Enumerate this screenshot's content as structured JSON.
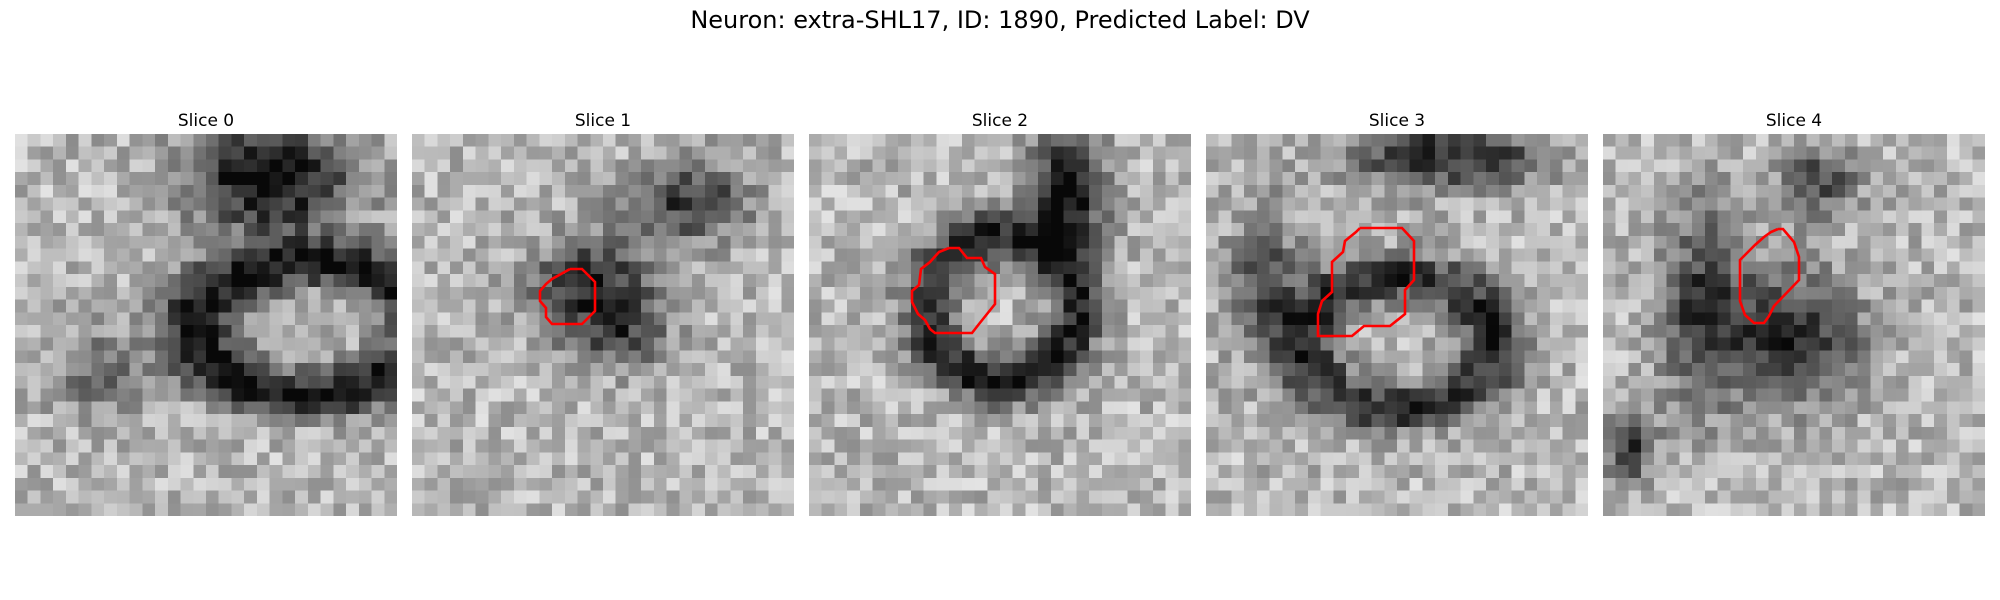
{
  "figure": {
    "title": "Neuron: extra-SHL17, ID: 1890, Predicted Label: DV"
  },
  "panels": [
    {
      "title": "Slice 0",
      "has_outline": false
    },
    {
      "title": "Slice 1",
      "has_outline": true
    },
    {
      "title": "Slice 2",
      "has_outline": true
    },
    {
      "title": "Slice 3",
      "has_outline": true
    },
    {
      "title": "Slice 4",
      "has_outline": true
    }
  ],
  "colors": {
    "outline": "#ff0000",
    "background": "#ffffff",
    "colormap": "grayscale"
  }
}
